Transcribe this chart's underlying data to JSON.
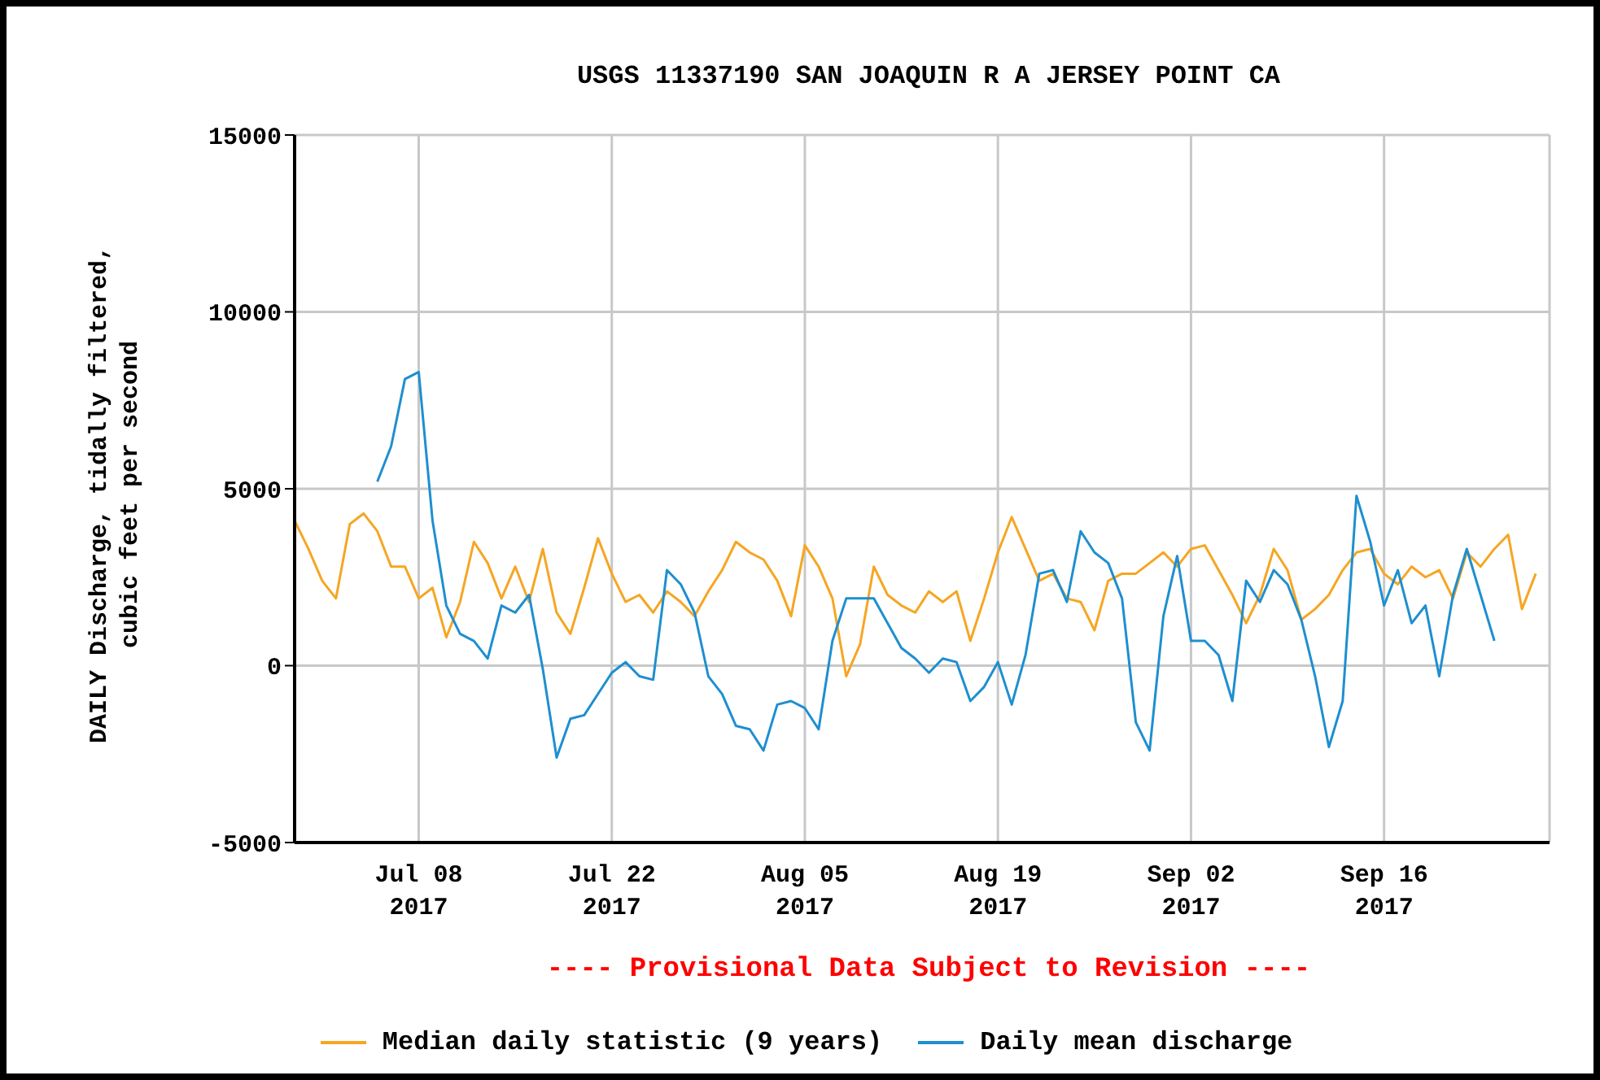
{
  "chart_data": {
    "type": "line",
    "title": "USGS 11337190 SAN JOAQUIN R A JERSEY POINT CA",
    "ylabel": "DAILY Discharge, tidally filtered, cubic feet per second",
    "annotations": [
      "---- Provisional Data Subject to Revision ----"
    ],
    "xlim": [
      "2017-06-29",
      "2017-09-28"
    ],
    "xticks": [
      {
        "value": "2017-07-08",
        "label": "Jul 08\n2017"
      },
      {
        "value": "2017-07-22",
        "label": "Jul 22\n2017"
      },
      {
        "value": "2017-08-05",
        "label": "Aug 05\n2017"
      },
      {
        "value": "2017-08-19",
        "label": "Aug 19\n2017"
      },
      {
        "value": "2017-09-02",
        "label": "Sep 02\n2017"
      },
      {
        "value": "2017-09-16",
        "label": "Sep 16\n2017"
      }
    ],
    "ylim": [
      -5000,
      15000
    ],
    "yticks": [
      -5000,
      0,
      5000,
      10000,
      15000
    ],
    "grid": true,
    "legend": "bottom",
    "marker": "none",
    "line_style": "solid",
    "series": [
      {
        "name": "Median daily statistic (9 years)",
        "color": "#f5a623",
        "x": [
          "2017-06-29",
          "2017-06-30",
          "2017-07-01",
          "2017-07-02",
          "2017-07-03",
          "2017-07-04",
          "2017-07-05",
          "2017-07-06",
          "2017-07-07",
          "2017-07-08",
          "2017-07-09",
          "2017-07-10",
          "2017-07-11",
          "2017-07-12",
          "2017-07-13",
          "2017-07-14",
          "2017-07-15",
          "2017-07-16",
          "2017-07-17",
          "2017-07-18",
          "2017-07-19",
          "2017-07-20",
          "2017-07-21",
          "2017-07-22",
          "2017-07-23",
          "2017-07-24",
          "2017-07-25",
          "2017-07-26",
          "2017-07-27",
          "2017-07-28",
          "2017-07-29",
          "2017-07-30",
          "2017-07-31",
          "2017-08-01",
          "2017-08-02",
          "2017-08-03",
          "2017-08-04",
          "2017-08-05",
          "2017-08-06",
          "2017-08-07",
          "2017-08-08",
          "2017-08-09",
          "2017-08-10",
          "2017-08-11",
          "2017-08-12",
          "2017-08-13",
          "2017-08-14",
          "2017-08-15",
          "2017-08-16",
          "2017-08-17",
          "2017-08-18",
          "2017-08-19",
          "2017-08-20",
          "2017-08-21",
          "2017-08-22",
          "2017-08-23",
          "2017-08-24",
          "2017-08-25",
          "2017-08-26",
          "2017-08-27",
          "2017-08-28",
          "2017-08-29",
          "2017-08-30",
          "2017-08-31",
          "2017-09-01",
          "2017-09-02",
          "2017-09-03",
          "2017-09-04",
          "2017-09-05",
          "2017-09-06",
          "2017-09-07",
          "2017-09-08",
          "2017-09-09",
          "2017-09-10",
          "2017-09-11",
          "2017-09-12",
          "2017-09-13",
          "2017-09-14",
          "2017-09-15",
          "2017-09-16",
          "2017-09-17",
          "2017-09-18",
          "2017-09-19",
          "2017-09-20",
          "2017-09-21",
          "2017-09-22",
          "2017-09-23",
          "2017-09-24",
          "2017-09-25",
          "2017-09-26",
          "2017-09-27"
        ],
        "values": [
          4100,
          3300,
          2400,
          1900,
          4000,
          4300,
          3800,
          2800,
          2800,
          1900,
          2200,
          800,
          1800,
          3500,
          2900,
          1900,
          2800,
          1800,
          3300,
          1500,
          900,
          2200,
          3600,
          2600,
          1800,
          2000,
          1500,
          2100,
          1800,
          1400,
          2100,
          2700,
          3500,
          3200,
          3000,
          2400,
          1400,
          3400,
          2800,
          1900,
          -300,
          600,
          2800,
          2000,
          1700,
          1500,
          2100,
          1800,
          2100,
          700,
          1900,
          3200,
          4200,
          3300,
          2400,
          2600,
          1900,
          1800,
          1000,
          2400,
          2600,
          2600,
          2900,
          3200,
          2800,
          3300,
          3400,
          2700,
          2000,
          1200,
          2000,
          3300,
          2700,
          1300,
          1600,
          2000,
          2700,
          3200,
          3300,
          2600,
          2300,
          2800,
          2500,
          2700,
          1900,
          3200,
          2800,
          3300,
          3700,
          1600,
          2600
        ]
      },
      {
        "name": "Daily mean discharge",
        "color": "#1e8fd0",
        "x": [
          "2017-07-05",
          "2017-07-06",
          "2017-07-07",
          "2017-07-08",
          "2017-07-09",
          "2017-07-10",
          "2017-07-11",
          "2017-07-12",
          "2017-07-13",
          "2017-07-14",
          "2017-07-15",
          "2017-07-16",
          "2017-07-17",
          "2017-07-18",
          "2017-07-19",
          "2017-07-20",
          "2017-07-21",
          "2017-07-22",
          "2017-07-23",
          "2017-07-24",
          "2017-07-25",
          "2017-07-26",
          "2017-07-27",
          "2017-07-28",
          "2017-07-29",
          "2017-07-30",
          "2017-07-31",
          "2017-08-01",
          "2017-08-02",
          "2017-08-03",
          "2017-08-04",
          "2017-08-05",
          "2017-08-06",
          "2017-08-07",
          "2017-08-08",
          "2017-08-09",
          "2017-08-10",
          "2017-08-11",
          "2017-08-12",
          "2017-08-13",
          "2017-08-14",
          "2017-08-15",
          "2017-08-16",
          "2017-08-17",
          "2017-08-18",
          "2017-08-19",
          "2017-08-20",
          "2017-08-21",
          "2017-08-22",
          "2017-08-23",
          "2017-08-24",
          "2017-08-25",
          "2017-08-26",
          "2017-08-27",
          "2017-08-28",
          "2017-08-29",
          "2017-08-30",
          "2017-08-31",
          "2017-09-01",
          "2017-09-02",
          "2017-09-03",
          "2017-09-04",
          "2017-09-05",
          "2017-09-06",
          "2017-09-07",
          "2017-09-08",
          "2017-09-09",
          "2017-09-10",
          "2017-09-11",
          "2017-09-12",
          "2017-09-13",
          "2017-09-14",
          "2017-09-15",
          "2017-09-16",
          "2017-09-17",
          "2017-09-18",
          "2017-09-19",
          "2017-09-20",
          "2017-09-21",
          "2017-09-22",
          "2017-09-23",
          "2017-09-24"
        ],
        "values": [
          5200,
          6200,
          8100,
          8300,
          4100,
          1700,
          900,
          700,
          200,
          1700,
          1500,
          2000,
          -100,
          -2600,
          -1500,
          -1400,
          -800,
          -200,
          100,
          -300,
          -400,
          2700,
          2300,
          1500,
          -300,
          -800,
          -1700,
          -1800,
          -2400,
          -1100,
          -1000,
          -1200,
          -1800,
          700,
          1900,
          1900,
          1900,
          1200,
          500,
          200,
          -200,
          200,
          100,
          -1000,
          -600,
          100,
          -1100,
          300,
          2600,
          2700,
          1800,
          3800,
          3200,
          2900,
          1900,
          -1600,
          -2400,
          1400,
          3100,
          700,
          700,
          300,
          -1000,
          2400,
          1800,
          2700,
          2300,
          1300,
          -300,
          -2300,
          -1000,
          4800,
          3500,
          1700,
          2700,
          1200,
          1700,
          -300,
          2000,
          3300,
          2000,
          700
        ]
      }
    ]
  }
}
